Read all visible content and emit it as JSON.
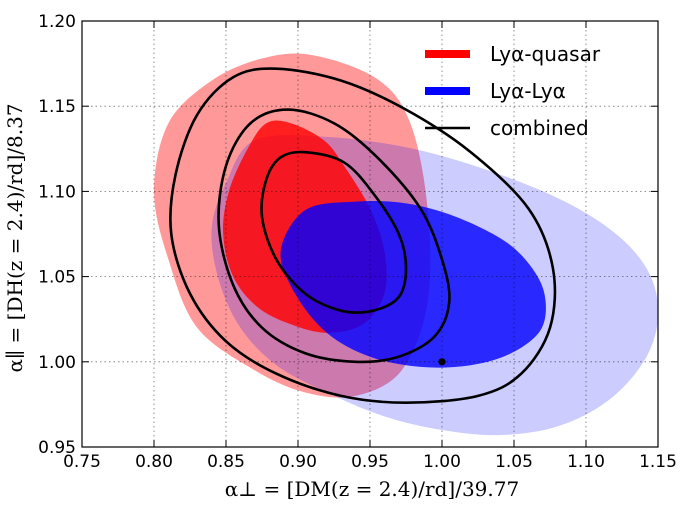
{
  "chart_data": {
    "type": "contour",
    "xlabel": "α⊥ = [DM(z = 2.4)/rd]/39.77",
    "ylabel": "α∥ = [DH(z = 2.4)/rd]/8.37",
    "xlim": [
      0.75,
      1.15
    ],
    "ylim": [
      0.95,
      1.2
    ],
    "x_ticks": [
      "0.75",
      "0.80",
      "0.85",
      "0.90",
      "0.95",
      "1.00",
      "1.05",
      "1.10",
      "1.15"
    ],
    "y_ticks": [
      "0.95",
      "1.00",
      "1.05",
      "1.10",
      "1.15",
      "1.20"
    ],
    "grid": true,
    "legend_position": "top-right",
    "series": [
      {
        "name": "Lyα-quasar",
        "color": "#ff0000",
        "regions": [
          {
            "level": "outer",
            "opacity": 0.4,
            "center": [
              0.915,
              1.087
            ],
            "points": [
              [
                0.91,
                1.18
              ],
              [
                0.955,
                1.166
              ],
              [
                0.978,
                1.14
              ],
              [
                0.99,
                1.09
              ],
              [
                0.99,
                1.035
              ],
              [
                0.972,
                0.995
              ],
              [
                0.94,
                0.98
              ],
              [
                0.905,
                0.982
              ],
              [
                0.87,
                0.995
              ],
              [
                0.83,
                1.02
              ],
              [
                0.81,
                1.06
              ],
              [
                0.8,
                1.1
              ],
              [
                0.81,
                1.14
              ],
              [
                0.84,
                1.165
              ],
              [
                0.875,
                1.178
              ]
            ]
          },
          {
            "level": "inner",
            "opacity": 0.8,
            "center": [
              0.915,
              1.087
            ],
            "points": [
              [
                0.895,
                1.14
              ],
              [
                0.918,
                1.13
              ],
              [
                0.932,
                1.115
              ],
              [
                0.95,
                1.09
              ],
              [
                0.96,
                1.065
              ],
              [
                0.96,
                1.04
              ],
              [
                0.945,
                1.022
              ],
              [
                0.92,
                1.017
              ],
              [
                0.895,
                1.022
              ],
              [
                0.872,
                1.032
              ],
              [
                0.855,
                1.05
              ],
              [
                0.848,
                1.075
              ],
              [
                0.852,
                1.1
              ],
              [
                0.865,
                1.125
              ],
              [
                0.878,
                1.14
              ]
            ]
          }
        ]
      },
      {
        "name": "Lyα-Lyα",
        "color": "#0000ff",
        "regions": [
          {
            "level": "outer",
            "opacity": 0.2,
            "center": [
              0.975,
              1.055
            ],
            "points": [
              [
                0.87,
                1.13
              ],
              [
                0.92,
                1.132
              ],
              [
                0.98,
                1.125
              ],
              [
                1.04,
                1.11
              ],
              [
                1.09,
                1.092
              ],
              [
                1.125,
                1.072
              ],
              [
                1.145,
                1.05
              ],
              [
                1.15,
                1.025
              ],
              [
                1.14,
                1.0
              ],
              [
                1.115,
                0.977
              ],
              [
                1.08,
                0.962
              ],
              [
                1.04,
                0.957
              ],
              [
                1.0,
                0.96
              ],
              [
                0.96,
                0.968
              ],
              [
                0.92,
                0.982
              ],
              [
                0.885,
                0.998
              ],
              [
                0.86,
                1.02
              ],
              [
                0.845,
                1.048
              ],
              [
                0.84,
                1.078
              ],
              [
                0.85,
                1.105
              ]
            ]
          },
          {
            "level": "inner",
            "opacity": 0.8,
            "center": [
              0.975,
              1.055
            ],
            "points": [
              [
                0.905,
                1.089
              ],
              [
                0.94,
                1.094
              ],
              [
                0.975,
                1.093
              ],
              [
                1.01,
                1.085
              ],
              [
                1.045,
                1.07
              ],
              [
                1.065,
                1.052
              ],
              [
                1.072,
                1.035
              ],
              [
                1.068,
                1.018
              ],
              [
                1.048,
                1.005
              ],
              [
                1.02,
                0.998
              ],
              [
                0.985,
                0.997
              ],
              [
                0.95,
                1.003
              ],
              [
                0.92,
                1.017
              ],
              [
                0.898,
                1.04
              ],
              [
                0.888,
                1.065
              ]
            ]
          }
        ]
      },
      {
        "name": "combined",
        "color": "#000000",
        "regions": [
          {
            "level": "outer",
            "center": [
              0.94,
              1.075
            ],
            "points": [
              [
                0.885,
                1.172
              ],
              [
                0.93,
                1.165
              ],
              [
                0.975,
                1.148
              ],
              [
                1.02,
                1.123
              ],
              [
                1.06,
                1.09
              ],
              [
                1.077,
                1.055
              ],
              [
                1.075,
                1.02
              ],
              [
                1.055,
                0.993
              ],
              [
                1.025,
                0.98
              ],
              [
                0.975,
                0.976
              ],
              [
                0.93,
                0.98
              ],
              [
                0.885,
                0.993
              ],
              [
                0.85,
                1.012
              ],
              [
                0.825,
                1.04
              ],
              [
                0.812,
                1.075
              ],
              [
                0.815,
                1.11
              ],
              [
                0.83,
                1.145
              ],
              [
                0.855,
                1.167
              ]
            ]
          },
          {
            "level": "middle",
            "center": [
              0.93,
              1.083
            ],
            "points": [
              [
                0.893,
                1.148
              ],
              [
                0.925,
                1.14
              ],
              [
                0.955,
                1.12
              ],
              [
                0.985,
                1.09
              ],
              [
                1.0,
                1.06
              ],
              [
                1.005,
                1.035
              ],
              [
                0.995,
                1.015
              ],
              [
                0.97,
                1.003
              ],
              [
                0.94,
                1.0
              ],
              [
                0.905,
                1.005
              ],
              [
                0.875,
                1.02
              ],
              [
                0.855,
                1.045
              ],
              [
                0.845,
                1.08
              ],
              [
                0.85,
                1.115
              ],
              [
                0.867,
                1.14
              ]
            ]
          },
          {
            "level": "inner",
            "center": [
              0.925,
              1.087
            ],
            "points": [
              [
                0.905,
                1.123
              ],
              [
                0.932,
                1.117
              ],
              [
                0.953,
                1.098
              ],
              [
                0.97,
                1.075
              ],
              [
                0.975,
                1.055
              ],
              [
                0.97,
                1.038
              ],
              [
                0.952,
                1.03
              ],
              [
                0.93,
                1.03
              ],
              [
                0.905,
                1.04
              ],
              [
                0.885,
                1.06
              ],
              [
                0.875,
                1.085
              ],
              [
                0.878,
                1.107
              ],
              [
                0.888,
                1.12
              ]
            ]
          }
        ]
      }
    ],
    "markers": [
      {
        "x": 1.0,
        "y": 1.0,
        "color": "#000000"
      }
    ]
  }
}
